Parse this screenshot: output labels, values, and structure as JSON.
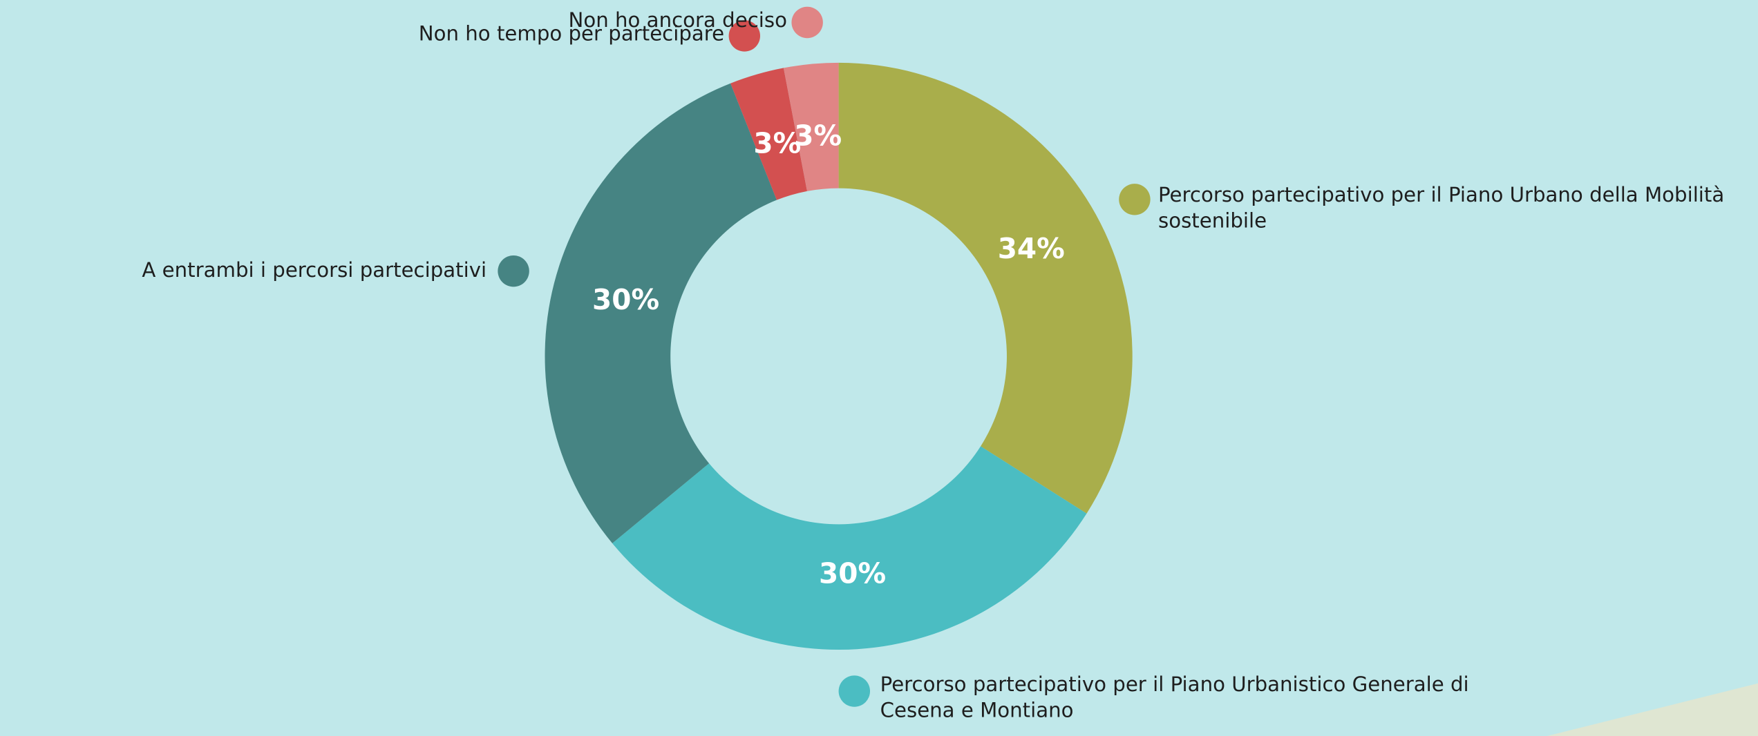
{
  "chart_data": {
    "type": "donut",
    "categories": [
      "Percorso partecipativo per il Piano Urbano della Mobilità sostenibile",
      "Percorso partecipativo per il Piano Urbanistico Generale di Cesena e Montiano",
      "A entrambi i percorsi partecipativi",
      "Non ho tempo per partecipare",
      "Non ho ancora deciso"
    ],
    "values": [
      34,
      30,
      30,
      3,
      3
    ],
    "value_labels": [
      "34%",
      "30%",
      "30%",
      "3%",
      "3%"
    ],
    "colors": [
      "#a9ae4b",
      "#4bbdc2",
      "#468483",
      "#d35050",
      "#e08585"
    ]
  }
}
